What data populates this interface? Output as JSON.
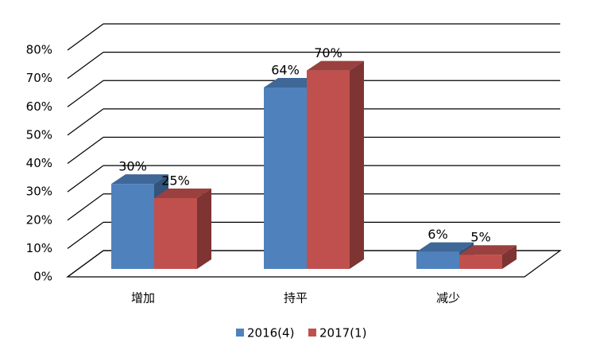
{
  "chart_data": {
    "type": "bar3d",
    "categories": [
      "增加",
      "持平",
      "减少"
    ],
    "series": [
      {
        "name": "2016(4)",
        "color": "#4f81bd",
        "values": [
          30,
          64,
          6
        ],
        "value_labels": [
          "30%",
          "64%",
          "6%"
        ]
      },
      {
        "name": "2017(1)",
        "color": "#c0504d",
        "values": [
          25,
          70,
          5
        ],
        "value_labels": [
          "25%",
          "70%",
          "5%"
        ]
      }
    ],
    "ylim": [
      0,
      80
    ],
    "yticks": [
      {
        "value": 0,
        "label": "0%"
      },
      {
        "value": 10,
        "label": "10%"
      },
      {
        "value": 20,
        "label": "20%"
      },
      {
        "value": 30,
        "label": "30%"
      },
      {
        "value": 40,
        "label": "40%"
      },
      {
        "value": 50,
        "label": "50%"
      },
      {
        "value": 60,
        "label": "60%"
      },
      {
        "value": 70,
        "label": "70%"
      },
      {
        "value": 80,
        "label": "80%"
      }
    ],
    "grid": true,
    "legend": "bottom"
  }
}
